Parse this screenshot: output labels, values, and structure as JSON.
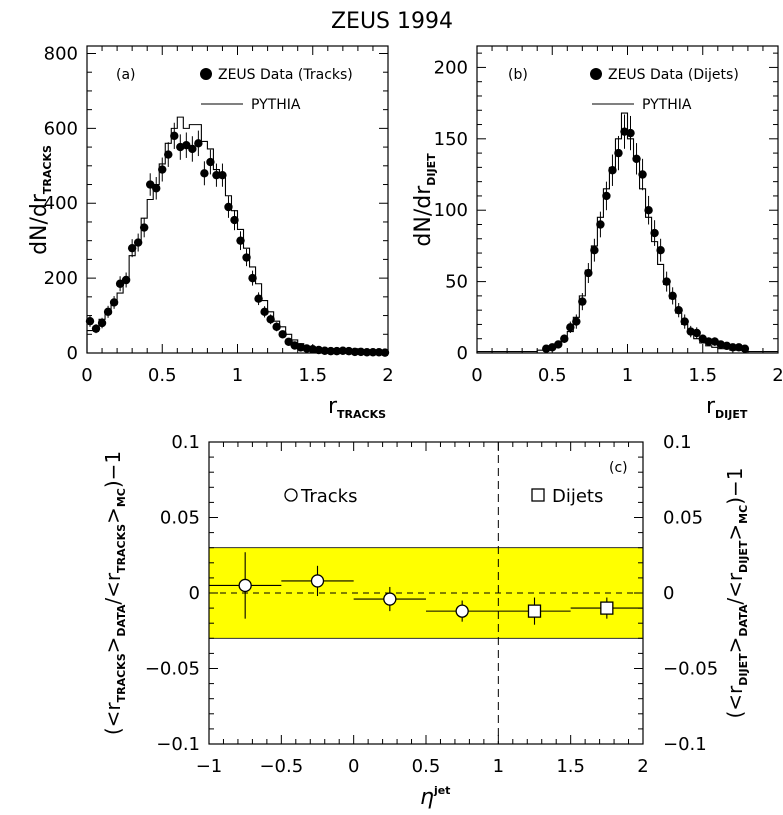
{
  "title": "ZEUS 1994",
  "chart_data": [
    {
      "type": "scatter",
      "panel_label": "(a)",
      "ylabel_main": "dN/dr",
      "ylabel_sub": "TRACKS",
      "xlabel_main": "r",
      "xlabel_sub": "TRACKS",
      "xlim": [
        0,
        2
      ],
      "ylim": [
        0,
        820
      ],
      "xticks": [
        0,
        0.5,
        1,
        1.5,
        2
      ],
      "xtick_labels": [
        "0",
        "0.5",
        "1",
        "1.5",
        "2"
      ],
      "yticks": [
        0,
        200,
        400,
        600,
        800
      ],
      "ytick_labels": [
        "0",
        "200",
        "400",
        "600",
        "800"
      ],
      "legend": {
        "data": "ZEUS Data (Tracks)",
        "mc": "PYTHIA"
      },
      "series": [
        {
          "name": "ZEUS Data (Tracks)",
          "kind": "points",
          "x": [
            0.02,
            0.06,
            0.1,
            0.14,
            0.18,
            0.22,
            0.26,
            0.3,
            0.34,
            0.38,
            0.42,
            0.46,
            0.5,
            0.54,
            0.58,
            0.62,
            0.66,
            0.7,
            0.74,
            0.78,
            0.82,
            0.86,
            0.9,
            0.94,
            0.98,
            1.02,
            1.06,
            1.1,
            1.14,
            1.18,
            1.22,
            1.26,
            1.3,
            1.34,
            1.38,
            1.42,
            1.46,
            1.5,
            1.54,
            1.58,
            1.62,
            1.66,
            1.7,
            1.74,
            1.78,
            1.82,
            1.86,
            1.9,
            1.94,
            1.98
          ],
          "y": [
            85,
            65,
            80,
            110,
            135,
            185,
            195,
            280,
            295,
            335,
            450,
            440,
            490,
            530,
            580,
            550,
            555,
            545,
            560,
            480,
            510,
            475,
            475,
            390,
            355,
            300,
            255,
            200,
            145,
            110,
            90,
            70,
            50,
            30,
            20,
            15,
            12,
            10,
            8,
            6,
            5,
            5,
            6,
            5,
            3,
            3,
            2,
            2,
            2,
            1
          ],
          "yerr": [
            15,
            12,
            14,
            16,
            17,
            20,
            20,
            24,
            24,
            26,
            30,
            30,
            32,
            33,
            35,
            34,
            34,
            34,
            34,
            32,
            33,
            31,
            31,
            29,
            27,
            25,
            23,
            20,
            17,
            15,
            13,
            12,
            10,
            8,
            6,
            5,
            5,
            4,
            4,
            3,
            3,
            3,
            3,
            3,
            2,
            2,
            2,
            2,
            2,
            1
          ]
        },
        {
          "name": "PYTHIA",
          "kind": "histogram",
          "bin_width": 0.04,
          "x": [
            0.02,
            0.06,
            0.1,
            0.14,
            0.18,
            0.22,
            0.26,
            0.3,
            0.34,
            0.38,
            0.42,
            0.46,
            0.5,
            0.54,
            0.58,
            0.62,
            0.66,
            0.7,
            0.74,
            0.78,
            0.82,
            0.86,
            0.9,
            0.94,
            0.98,
            1.02,
            1.06,
            1.1,
            1.14,
            1.18,
            1.22,
            1.26,
            1.3,
            1.34,
            1.38,
            1.42,
            1.46,
            1.5,
            1.54,
            1.58,
            1.62,
            1.66,
            1.7,
            1.74,
            1.78,
            1.82,
            1.86,
            1.9,
            1.94,
            1.98
          ],
          "y": [
            60,
            70,
            90,
            105,
            130,
            160,
            200,
            260,
            300,
            360,
            410,
            450,
            505,
            560,
            600,
            630,
            600,
            610,
            610,
            565,
            545,
            490,
            470,
            420,
            380,
            330,
            280,
            230,
            185,
            140,
            110,
            85,
            70,
            50,
            35,
            25,
            18,
            12,
            9,
            6,
            5,
            4,
            3,
            3,
            2,
            2,
            2,
            1,
            1,
            1
          ]
        }
      ]
    },
    {
      "type": "scatter",
      "panel_label": "(b)",
      "ylabel_main": "dN/dr",
      "ylabel_sub": "DIJET",
      "xlabel_main": "r",
      "xlabel_sub": "DIJET",
      "xlim": [
        0,
        2
      ],
      "ylim": [
        0,
        215
      ],
      "xticks": [
        0,
        0.5,
        1,
        1.5,
        2
      ],
      "xtick_labels": [
        "0",
        "0.5",
        "1",
        "1.5",
        "2"
      ],
      "yticks": [
        0,
        50,
        100,
        150,
        200
      ],
      "ytick_labels": [
        "0",
        "50",
        "100",
        "150",
        "200"
      ],
      "legend": {
        "data": "ZEUS Data (Dijets)",
        "mc": "PYTHIA"
      },
      "series": [
        {
          "name": "ZEUS Data (Dijets)",
          "kind": "points",
          "x": [
            0.46,
            0.5,
            0.54,
            0.58,
            0.62,
            0.66,
            0.7,
            0.74,
            0.78,
            0.82,
            0.86,
            0.9,
            0.94,
            0.98,
            1.02,
            1.06,
            1.1,
            1.14,
            1.18,
            1.22,
            1.26,
            1.3,
            1.34,
            1.38,
            1.42,
            1.46,
            1.5,
            1.54,
            1.58,
            1.62,
            1.66,
            1.7,
            1.74,
            1.78
          ],
          "y": [
            3,
            4,
            6,
            10,
            18,
            22,
            36,
            56,
            72,
            90,
            110,
            128,
            140,
            155,
            154,
            136,
            125,
            100,
            84,
            72,
            50,
            40,
            30,
            22,
            15,
            14,
            10,
            8,
            8,
            6,
            5,
            4,
            4,
            3
          ],
          "yerr": [
            2,
            2,
            2,
            3,
            4,
            5,
            6,
            7,
            8,
            9,
            10,
            11,
            12,
            12,
            12,
            11,
            11,
            10,
            9,
            8,
            7,
            6,
            5,
            5,
            4,
            4,
            3,
            3,
            3,
            2,
            2,
            2,
            2,
            2
          ]
        },
        {
          "name": "PYTHIA",
          "kind": "histogram",
          "bin_width": 0.04,
          "x": [
            0.02,
            0.06,
            0.1,
            0.14,
            0.18,
            0.22,
            0.26,
            0.3,
            0.34,
            0.38,
            0.42,
            0.46,
            0.5,
            0.54,
            0.58,
            0.62,
            0.66,
            0.7,
            0.74,
            0.78,
            0.82,
            0.86,
            0.9,
            0.94,
            0.98,
            1.02,
            1.06,
            1.1,
            1.14,
            1.18,
            1.22,
            1.26,
            1.3,
            1.34,
            1.38,
            1.42,
            1.46,
            1.5,
            1.54,
            1.58,
            1.62,
            1.66,
            1.7,
            1.74,
            1.78,
            1.82,
            1.86,
            1.9,
            1.94,
            1.98
          ],
          "y": [
            1,
            1,
            1,
            1,
            1,
            1,
            1,
            1,
            1,
            1,
            2,
            2,
            3,
            5,
            9,
            15,
            25,
            40,
            58,
            75,
            95,
            115,
            130,
            150,
            168,
            150,
            135,
            115,
            95,
            78,
            62,
            48,
            38,
            28,
            20,
            14,
            10,
            7,
            5,
            4,
            3,
            3,
            2,
            2,
            2,
            1,
            1,
            1,
            1,
            1
          ]
        }
      ]
    },
    {
      "type": "scatter",
      "panel_label": "(c)",
      "ylabel_left_open": "(<r",
      "ylabel_left_sub1": "TRACKS",
      "ylabel_left_mid1": ">",
      "ylabel_left_sub2": "DATA",
      "ylabel_left_mid2": "/<r",
      "ylabel_left_sub3": "TRACKS",
      "ylabel_left_mid3": ">",
      "ylabel_left_sub4": "MC",
      "ylabel_left_close": ")−1",
      "ylabel_right_open": "(<r",
      "ylabel_right_sub1": "DIJET",
      "ylabel_right_mid1": ">",
      "ylabel_right_sub2": "DATA",
      "ylabel_right_mid2": "/<r",
      "ylabel_right_sub3": "DIJET",
      "ylabel_right_mid3": ">",
      "ylabel_right_sub4": "MC",
      "ylabel_right_close": ")−1",
      "xlabel_main": "η",
      "xlabel_sup": "jet",
      "xlim": [
        -1,
        2
      ],
      "ylim": [
        -0.1,
        0.1
      ],
      "xticks": [
        -1,
        -0.5,
        0,
        0.5,
        1,
        1.5,
        2
      ],
      "xtick_labels": [
        "−1",
        "−0.5",
        "0",
        "0.5",
        "1",
        "1.5",
        "2"
      ],
      "yticks": [
        -0.1,
        -0.05,
        0,
        0.05,
        0.1
      ],
      "ytick_labels": [
        "−0.1",
        "−0.05",
        "0",
        "0.05",
        "0.1"
      ],
      "band": {
        "low": -0.03,
        "high": 0.03,
        "color": "#ffff00"
      },
      "divider_x": 1,
      "legend": {
        "tracks": "Tracks",
        "dijets": "Dijets"
      },
      "series": [
        {
          "name": "Tracks",
          "marker": "circle",
          "x": [
            -0.75,
            -0.25,
            0.25,
            0.75
          ],
          "xerr": [
            0.25,
            0.25,
            0.25,
            0.25
          ],
          "y": [
            0.005,
            0.008,
            -0.004,
            -0.012
          ],
          "yerr": [
            0.022,
            0.01,
            0.008,
            0.007
          ]
        },
        {
          "name": "Dijets",
          "marker": "square",
          "x": [
            1.25,
            1.75
          ],
          "xerr": [
            0.25,
            0.25
          ],
          "y": [
            -0.012,
            -0.01
          ],
          "yerr": [
            0.009,
            0.007
          ]
        }
      ]
    }
  ]
}
